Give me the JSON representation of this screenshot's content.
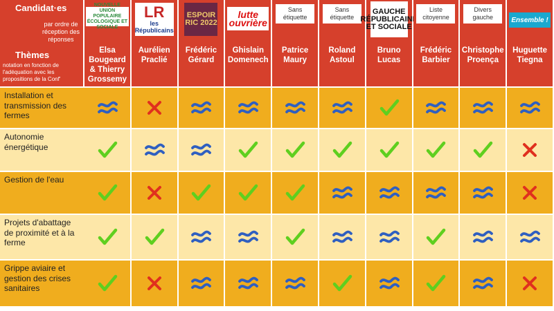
{
  "header": {
    "candidats_title": "Candidat·es",
    "candidats_sub": "par ordre de réception des réponses",
    "themes_title": "Thèmes",
    "themes_sub": "notation en fonction de l'adéquation avec les propositions de la Conf'"
  },
  "candidates": [
    {
      "name": "Elsa Bougeard & Thierry Grossemy",
      "logo": "NOUVELLE UNION POPULAIRE ÉCOLOGIQUE ET SOCIALE",
      "logo_type": "ecol"
    },
    {
      "name": "Aurélien Praclié",
      "logo": "les Républicains",
      "logo_mark": "LR",
      "logo_type": "lr"
    },
    {
      "name": "Frédéric Gérard",
      "logo": "ESPOIR RIC 2022",
      "logo_type": "esp"
    },
    {
      "name": "Ghislain Domenech",
      "logo": "lutte ouvrière",
      "logo_type": "lo"
    },
    {
      "name": "Patrice Maury",
      "logo": "Sans étiquette",
      "logo_type": "tag"
    },
    {
      "name": "Roland Astoul",
      "logo": "Sans étiquette",
      "logo_type": "tag"
    },
    {
      "name": "Bruno Lucas",
      "logo": "GAUCHE RÉPUBLICAINE ET SOCIALE",
      "logo_type": "gauche"
    },
    {
      "name": "Frédéric Barbier",
      "logo": "Liste citoyenne",
      "logo_type": "tag"
    },
    {
      "name": "Christophe Proença",
      "logo": "Divers gauche",
      "logo_type": "tag"
    },
    {
      "name": "Huguette Tiegna",
      "logo": "Ensemble !",
      "logo_type": "ens"
    }
  ],
  "themes": [
    {
      "label": "Installation et transmission des fermes",
      "marks": [
        "approx",
        "cross",
        "approx",
        "approx",
        "approx",
        "approx",
        "check",
        "approx",
        "approx",
        "approx"
      ]
    },
    {
      "label": "Autonomie énergétique",
      "marks": [
        "check",
        "approx",
        "approx",
        "check",
        "check",
        "check",
        "check",
        "check",
        "check",
        "cross"
      ]
    },
    {
      "label": "Gestion de l'eau",
      "marks": [
        "check",
        "cross",
        "check",
        "check",
        "check",
        "approx",
        "approx",
        "approx",
        "approx",
        "cross"
      ]
    },
    {
      "label": "Projets d'abattage de proximité et à la ferme",
      "marks": [
        "check",
        "check",
        "approx",
        "approx",
        "check",
        "approx",
        "approx",
        "check",
        "approx",
        "approx"
      ]
    },
    {
      "label": "Grippe aviaire et gestion des crises sanitaires",
      "marks": [
        "check",
        "cross",
        "approx",
        "approx",
        "approx",
        "check",
        "approx",
        "check",
        "approx",
        "cross"
      ]
    }
  ],
  "mark_icons": {
    "check": "check-icon",
    "cross": "cross-icon",
    "approx": "approx-icon"
  },
  "colors": {
    "header": "#d6402c",
    "row_dark": "#f0ad1e",
    "row_light": "#fde7a8",
    "check": "#5fcf1f",
    "cross": "#e0301e",
    "approx": "#2f5fc0"
  }
}
